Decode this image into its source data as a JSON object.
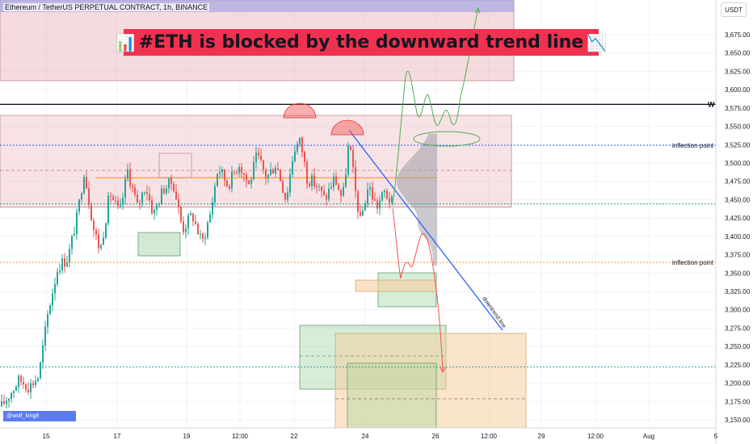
{
  "header": {
    "symbol_line": "Ethereum / TetherUS PERPETUAL CONTRACT, 1h, BINANCE",
    "currency": "USDT"
  },
  "banner": {
    "icon_left": "📊",
    "text": "#ETH is blocked by the downward trend line",
    "icon_right": "📉"
  },
  "author": {
    "handle": "@wolf_king8"
  },
  "colors": {
    "bull": "#26a69a",
    "bear": "#ef5350",
    "banner": "#f0314f",
    "trendline": "#2962ff",
    "zone_red": "#e8aeb5",
    "zone_green": "#a5d6a7",
    "zone_orange": "#f5cfa3",
    "projection_green": "#4caf50",
    "projection_red": "#ef5350"
  },
  "chart_data": {
    "type": "candlestick",
    "title": "Ethereum / TetherUS PERPETUAL CONTRACT, 1h, BINANCE",
    "y_axis": {
      "range": [
        3140,
        3720
      ],
      "ticks": [
        3150,
        3175,
        3200,
        3225,
        3250,
        3275,
        3300,
        3325,
        3350,
        3375,
        3400,
        3425,
        3450,
        3475,
        3500,
        3525,
        3550,
        3575,
        3600,
        3625,
        3650,
        3675
      ],
      "tick_labels": [
        "3,150.00",
        "3,175.00",
        "3,200.00",
        "3,225.00",
        "3,250.00",
        "3,275.00",
        "3,300.00",
        "3,325.00",
        "3,350.00",
        "3,375.00",
        "3,400.00",
        "3,425.00",
        "3,450.00",
        "3,475.00",
        "3,500.00",
        "3,525.00",
        "3,550.00",
        "3,575.00",
        "3,600.00",
        "3,625.00",
        "3,650.00",
        "3,675.00"
      ]
    },
    "x_axis": {
      "ticks": [
        "15",
        "17",
        "19",
        "12:00",
        "22",
        "24",
        "26",
        "12:00",
        "29",
        "12:00",
        "Aug",
        "5"
      ]
    },
    "candle_path": [
      [
        0,
        3165
      ],
      [
        12,
        3185
      ],
      [
        24,
        3205
      ],
      [
        36,
        3195
      ],
      [
        48,
        3210
      ],
      [
        60,
        3300
      ],
      [
        72,
        3360
      ],
      [
        84,
        3370
      ],
      [
        96,
        3430
      ],
      [
        104,
        3490
      ],
      [
        116,
        3410
      ],
      [
        124,
        3380
      ],
      [
        136,
        3460
      ],
      [
        148,
        3430
      ],
      [
        158,
        3490
      ],
      [
        170,
        3440
      ],
      [
        180,
        3470
      ],
      [
        190,
        3430
      ],
      [
        202,
        3465
      ],
      [
        214,
        3475
      ],
      [
        226,
        3410
      ],
      [
        238,
        3430
      ],
      [
        250,
        3390
      ],
      [
        260,
        3430
      ],
      [
        270,
        3495
      ],
      [
        282,
        3470
      ],
      [
        296,
        3500
      ],
      [
        308,
        3470
      ],
      [
        318,
        3510
      ],
      [
        330,
        3480
      ],
      [
        342,
        3500
      ],
      [
        354,
        3450
      ],
      [
        364,
        3520
      ],
      [
        372,
        3530
      ],
      [
        380,
        3480
      ],
      [
        392,
        3470
      ],
      [
        402,
        3450
      ],
      [
        414,
        3480
      ],
      [
        424,
        3450
      ],
      [
        432,
        3530
      ],
      [
        440,
        3460
      ],
      [
        446,
        3420
      ],
      [
        456,
        3470
      ],
      [
        466,
        3440
      ],
      [
        476,
        3460
      ],
      [
        486,
        3445
      ]
    ],
    "horizontal_levels": [
      {
        "label": "W",
        "value": 3580.0,
        "price_label": "3,580.00",
        "style": "solid-black"
      },
      {
        "label": "inflection point",
        "value": 3524.16,
        "price_label": "3,524.16",
        "style": "dotted-blue"
      },
      {
        "label": "",
        "value": 3444.41,
        "price_label": "3,444.41",
        "sub_label": "44:43",
        "style": "dotted-green"
      },
      {
        "label": "inflection point",
        "value": 3364.62,
        "price_label": "3,364.62",
        "style": "dotted-orange"
      },
      {
        "label": "",
        "value": 3221.95,
        "price_label": "3,221.95",
        "style": "dotted-green"
      }
    ],
    "zones": [
      {
        "type": "resistance",
        "from": 3610,
        "to": 3720
      },
      {
        "type": "range",
        "from": 3440,
        "to": 3565
      }
    ],
    "trendline": {
      "label": "downtrend line",
      "start": {
        "x_index": 432,
        "value": 3545
      },
      "end": {
        "x_index": 622,
        "value": 3272
      }
    }
  }
}
